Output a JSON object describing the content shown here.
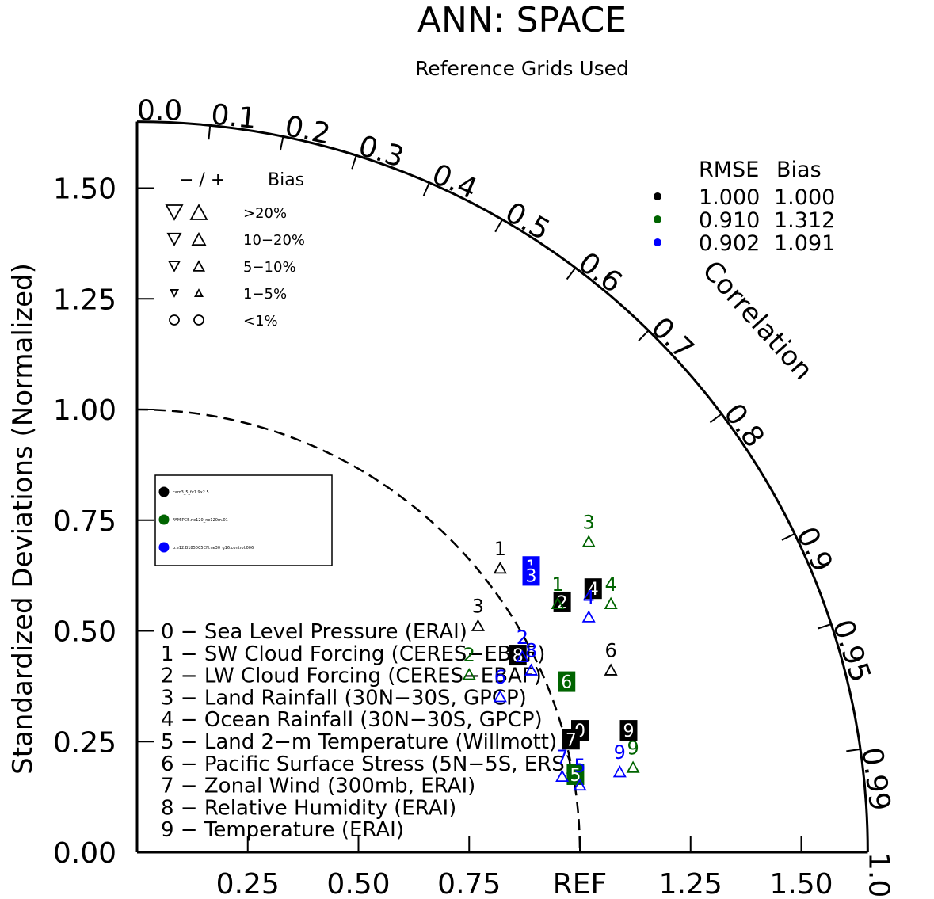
{
  "chart_data": {
    "type": "scatter",
    "subtype": "taylor-diagram",
    "title": "ANN: SPACE",
    "subtitle": "Reference Grids Used",
    "ylabel": "Standardized Deviations (Normalized)",
    "xref_label": "REF",
    "arc_label": "Correlation",
    "ylim": [
      0,
      1.65
    ],
    "yticks": [
      "0.00",
      "0.25",
      "0.50",
      "0.75",
      "1.00",
      "1.25",
      "1.50"
    ],
    "xticks": [
      "0.25",
      "0.50",
      "0.75",
      "REF",
      "1.25",
      "1.50"
    ],
    "correlation_ticks": [
      "0.0",
      "0.1",
      "0.2",
      "0.3",
      "0.4",
      "0.5",
      "0.6",
      "0.7",
      "0.8",
      "0.9",
      "0.95",
      "0.99",
      "1.0"
    ],
    "bias_legend": {
      "header_sign": "− / +",
      "header_bias": "Bias",
      "rows": [
        ">20%",
        "10−20%",
        "5−10%",
        "1−5%",
        "<1%"
      ]
    },
    "stats_header": {
      "rmse": "RMSE",
      "bias": "Bias"
    },
    "cases": [
      {
        "color": "#000000",
        "rmse": "1.000",
        "bias": "1.000"
      },
      {
        "color": "#006400",
        "rmse": "0.910",
        "bias": "1.312"
      },
      {
        "color": "#0000ff",
        "rmse": "0.902",
        "bias": "1.091"
      }
    ],
    "case_names": [
      "cam3_5_fv1.9x2.5",
      "FAMIPC5.ne120_ne120m.01",
      "b.e12.B1850C5CN.ne30_g16.control.006"
    ],
    "variables": [
      "0 − Sea Level Pressure (ERAI)",
      "1 − SW Cloud Forcing (CERES−EBAF)",
      "2 − LW Cloud Forcing (CERES−EBAF)",
      "3 − Land Rainfall (30N−30S, GPCP)",
      "4 − Ocean Rainfall (30N−30S, GPCP)",
      "5 − Land 2−m Temperature (Willmott)",
      "6 − Pacific Surface Stress (5N−5S, ERS)",
      "7 − Zonal Wind (300mb, ERAI)",
      "8 − Relative Humidity (ERAI)",
      "9 − Temperature (ERAI)"
    ],
    "series": [
      {
        "name": "cam3_5_fv1.9x2.5",
        "color": "#000000",
        "points": [
          {
            "id": "0",
            "x": 1.0,
            "y": 0.27,
            "boxed": true
          },
          {
            "id": "1",
            "x": 0.82,
            "y": 0.66,
            "boxed": false
          },
          {
            "id": "2",
            "x": 0.96,
            "y": 0.56,
            "boxed": true
          },
          {
            "id": "3",
            "x": 0.77,
            "y": 0.53,
            "boxed": false
          },
          {
            "id": "4",
            "x": 1.03,
            "y": 0.59,
            "boxed": true
          },
          {
            "id": "6",
            "x": 1.07,
            "y": 0.43,
            "boxed": false
          },
          {
            "id": "7",
            "x": 0.98,
            "y": 0.25,
            "boxed": true
          },
          {
            "id": "8",
            "x": 0.86,
            "y": 0.44,
            "boxed": true
          },
          {
            "id": "9",
            "x": 1.11,
            "y": 0.27,
            "boxed": true
          }
        ]
      },
      {
        "name": "FAMIPC5.ne120_ne120m.01",
        "color": "#006400",
        "points": [
          {
            "id": "1",
            "x": 0.95,
            "y": 0.58,
            "boxed": false
          },
          {
            "id": "2",
            "x": 0.75,
            "y": 0.42,
            "boxed": false
          },
          {
            "id": "3",
            "x": 1.02,
            "y": 0.72,
            "boxed": false
          },
          {
            "id": "4",
            "x": 1.07,
            "y": 0.58,
            "boxed": false
          },
          {
            "id": "5",
            "x": 0.99,
            "y": 0.17,
            "boxed": true
          },
          {
            "id": "6",
            "x": 0.97,
            "y": 0.38,
            "boxed": true
          },
          {
            "id": "9",
            "x": 1.12,
            "y": 0.21,
            "boxed": false
          }
        ]
      },
      {
        "name": "b.e12.B1850C5CN.ne30_g16.control.006",
        "color": "#0000ff",
        "points": [
          {
            "id": "1",
            "x": 0.89,
            "y": 0.64,
            "boxed": true
          },
          {
            "id": "2",
            "x": 0.87,
            "y": 0.46,
            "boxed": false
          },
          {
            "id": "3",
            "x": 0.89,
            "y": 0.62,
            "boxed": true
          },
          {
            "id": "4",
            "x": 1.02,
            "y": 0.55,
            "boxed": false
          },
          {
            "id": "5",
            "x": 1.0,
            "y": 0.17,
            "boxed": false
          },
          {
            "id": "6",
            "x": 0.82,
            "y": 0.37,
            "boxed": false
          },
          {
            "id": "7",
            "x": 0.96,
            "y": 0.19,
            "boxed": false
          },
          {
            "id": "8",
            "x": 0.89,
            "y": 0.43,
            "boxed": false
          },
          {
            "id": "9",
            "x": 1.09,
            "y": 0.2,
            "boxed": false
          }
        ]
      }
    ]
  }
}
